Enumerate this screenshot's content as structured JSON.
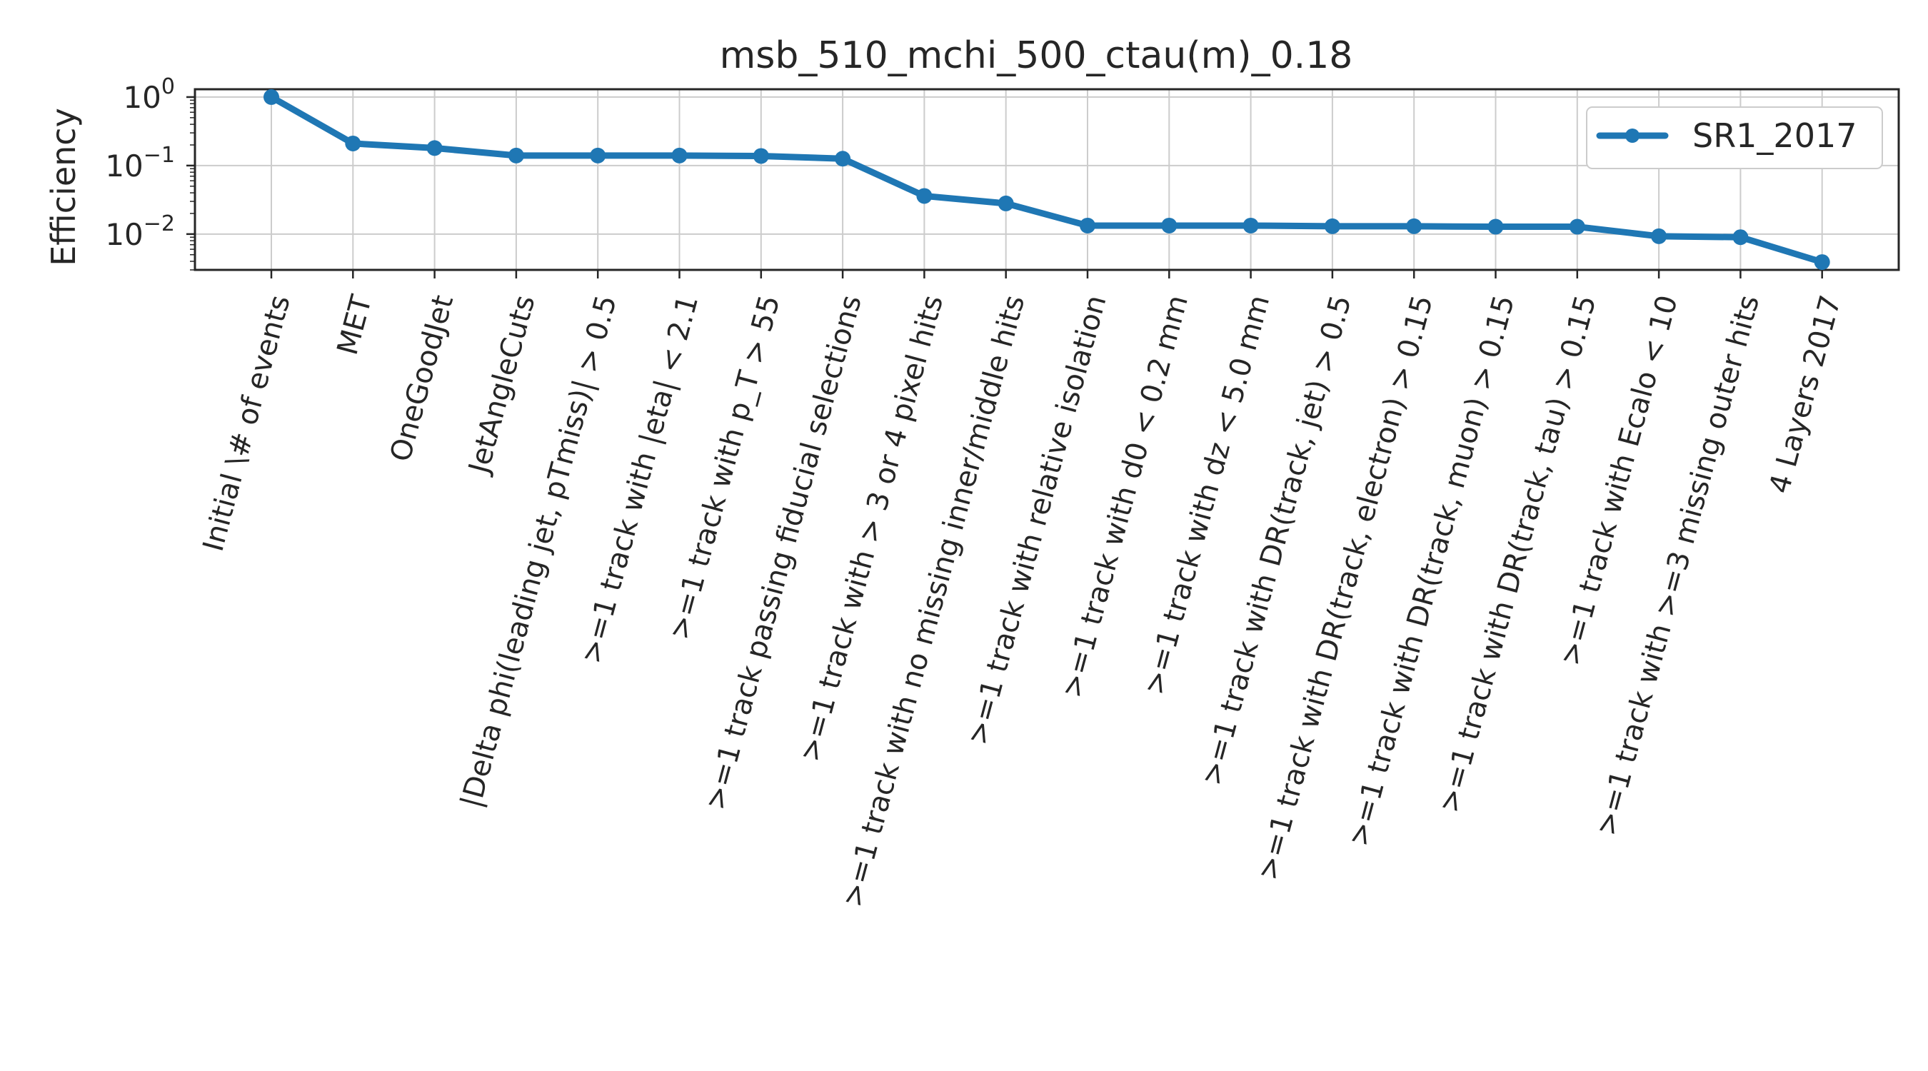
{
  "chart_data": {
    "type": "line",
    "title": "msb_510_mchi_500_ctau(m)_0.18",
    "xlabel": "",
    "ylabel": "Efficiency",
    "yscale": "log",
    "ylim": [
      0.003,
      1.3
    ],
    "yticks": [
      {
        "value": 1,
        "base": "10",
        "exp": "0"
      },
      {
        "value": 0.1,
        "base": "10",
        "exp": "−1"
      },
      {
        "value": 0.01,
        "base": "10",
        "exp": "−2"
      }
    ],
    "grid": true,
    "legend": "top-right",
    "categories": [
      "Initial \\# of events",
      "MET",
      "OneGoodJet",
      "JetAngleCuts",
      "|Delta phi(leading jet, pTmiss)| > 0.5",
      ">=1 track with |eta| < 2.1",
      ">=1 track with p_T > 55",
      ">=1 track passing fiducial selections",
      ">=1 track with > 3 or 4 pixel hits",
      ">=1 track with no missing inner/middle hits",
      ">=1 track with relative isolation",
      ">=1 track with d0 < 0.2 mm",
      ">=1 track with dz < 5.0 mm",
      ">=1 track with DR(track, jet) > 0.5",
      ">=1 track with DR(track, electron) > 0.15",
      ">=1 track with DR(track, muon) > 0.15",
      ">=1 track with DR(track, tau) > 0.15",
      ">=1 track with Ecalo < 10",
      ">=1 track with >=3 missing outer hits",
      "4 Layers 2017"
    ],
    "series": [
      {
        "name": "SR1_2017",
        "color": "#1f77b4",
        "values": [
          1.0,
          0.21,
          0.18,
          0.14,
          0.14,
          0.14,
          0.138,
          0.126,
          0.036,
          0.028,
          0.0133,
          0.0133,
          0.0133,
          0.013,
          0.013,
          0.0128,
          0.0128,
          0.0093,
          0.009,
          0.0039
        ]
      }
    ]
  }
}
